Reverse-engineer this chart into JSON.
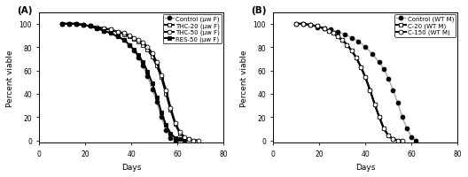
{
  "panel_A_label": "(A)",
  "panel_B_label": "(B)",
  "xlabel": "Days",
  "ylabel": "Percent viable",
  "xlim": [
    0,
    80
  ],
  "ylim": [
    -2,
    110
  ],
  "yticks": [
    0,
    20,
    40,
    60,
    80,
    100
  ],
  "xticks": [
    0,
    20,
    40,
    60,
    80
  ],
  "A_control": {
    "label": "Control (μw F)",
    "color": "#999999",
    "marker": "o",
    "mfc": "black",
    "mec": "black",
    "lw": 1.0,
    "ms": 3.5,
    "x": [
      10,
      13,
      16,
      19,
      22,
      25,
      28,
      31,
      34,
      37,
      39,
      41,
      43,
      45,
      47,
      49,
      51,
      53,
      55,
      57,
      59
    ],
    "y": [
      100,
      100,
      100,
      99,
      98,
      96,
      94,
      92,
      89,
      86,
      82,
      77,
      71,
      64,
      55,
      44,
      33,
      20,
      9,
      2,
      0
    ]
  },
  "A_THC20": {
    "label": "THC-20 (μw F)",
    "color": "black",
    "marker": "s",
    "mfc": "white",
    "mec": "black",
    "lw": 1.5,
    "ms": 3.5,
    "x": [
      10,
      13,
      16,
      19,
      22,
      25,
      28,
      31,
      34,
      37,
      39,
      41,
      43,
      45,
      47,
      49,
      51,
      53,
      55,
      57,
      59,
      61,
      63,
      65,
      67
    ],
    "y": [
      100,
      100,
      100,
      99,
      98,
      97,
      96,
      95,
      93,
      91,
      89,
      87,
      85,
      82,
      78,
      72,
      64,
      54,
      40,
      26,
      14,
      6,
      2,
      1,
      0
    ]
  },
  "A_THC50": {
    "label": "THC-50 (μw F)",
    "color": "black",
    "marker": "o",
    "mfc": "white",
    "mec": "black",
    "lw": 1.5,
    "ms": 3.5,
    "x": [
      10,
      13,
      16,
      19,
      22,
      25,
      28,
      31,
      34,
      37,
      39,
      41,
      43,
      45,
      47,
      49,
      51,
      53,
      55,
      57,
      59,
      61,
      63,
      65,
      67,
      69
    ],
    "y": [
      100,
      100,
      100,
      99,
      98,
      97,
      96,
      95,
      93,
      92,
      90,
      88,
      86,
      84,
      80,
      75,
      67,
      56,
      43,
      28,
      15,
      7,
      3,
      1,
      0,
      0
    ]
  },
  "A_RES50": {
    "label": "RES-50 (μw F)",
    "color": "black",
    "marker": "s",
    "mfc": "black",
    "mec": "black",
    "lw": 1.5,
    "ms": 3.5,
    "x": [
      10,
      13,
      16,
      19,
      22,
      25,
      28,
      31,
      34,
      37,
      39,
      41,
      43,
      45,
      47,
      49,
      51,
      53,
      55,
      57,
      59,
      61,
      63
    ],
    "y": [
      100,
      100,
      100,
      99,
      98,
      96,
      94,
      92,
      89,
      86,
      82,
      78,
      73,
      67,
      59,
      49,
      37,
      24,
      13,
      6,
      2,
      1,
      0
    ]
  },
  "B_control": {
    "label": "Control (WT M)",
    "color": "#aaaaaa",
    "marker": "o",
    "mfc": "black",
    "mec": "black",
    "lw": 1.0,
    "ms": 3.5,
    "x": [
      10,
      13,
      16,
      19,
      22,
      25,
      28,
      31,
      34,
      37,
      40,
      43,
      46,
      48,
      50,
      52,
      54,
      56,
      58,
      60,
      62
    ],
    "y": [
      100,
      100,
      99,
      97,
      96,
      95,
      93,
      91,
      88,
      85,
      80,
      74,
      67,
      61,
      53,
      43,
      32,
      20,
      10,
      3,
      0
    ]
  },
  "B_C20": {
    "label": "C-20 (WT M)",
    "color": "black",
    "marker": "s",
    "mfc": "white",
    "mec": "black",
    "lw": 1.5,
    "ms": 3.5,
    "x": [
      10,
      13,
      16,
      19,
      22,
      24,
      26,
      28,
      30,
      32,
      34,
      36,
      38,
      40,
      42,
      44,
      46,
      48,
      50,
      52,
      54
    ],
    "y": [
      100,
      100,
      99,
      98,
      96,
      94,
      92,
      89,
      86,
      82,
      77,
      71,
      63,
      54,
      43,
      31,
      20,
      10,
      4,
      1,
      0
    ]
  },
  "B_C150": {
    "label": "C-150 (WT M)",
    "color": "black",
    "marker": "o",
    "mfc": "white",
    "mec": "black",
    "lw": 1.5,
    "ms": 3.5,
    "x": [
      10,
      13,
      16,
      19,
      22,
      24,
      26,
      28,
      30,
      32,
      34,
      36,
      38,
      40,
      42,
      44,
      46,
      48,
      50,
      52,
      54,
      56
    ],
    "y": [
      100,
      100,
      99,
      98,
      96,
      94,
      92,
      89,
      86,
      82,
      77,
      71,
      63,
      54,
      43,
      31,
      20,
      10,
      4,
      1,
      0,
      0
    ]
  },
  "legend_fontsize": 5.0,
  "axis_label_fontsize": 6.5,
  "tick_fontsize": 5.5,
  "panel_label_fontsize": 7.5
}
